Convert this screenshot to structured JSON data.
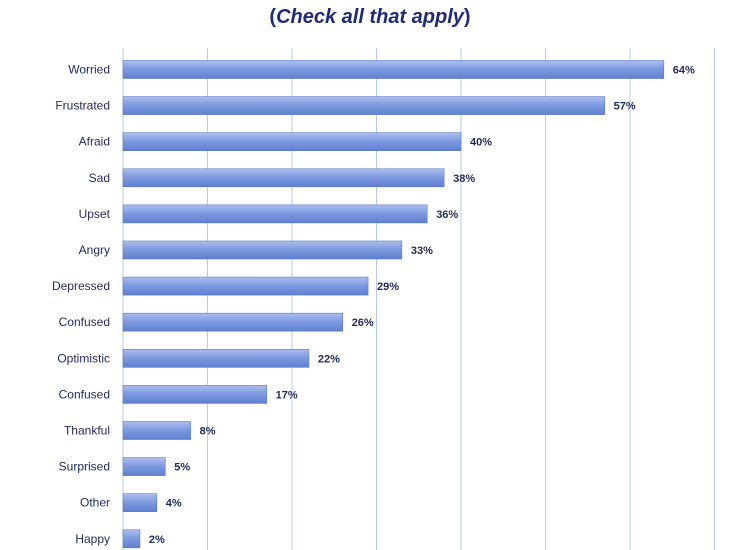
{
  "subtitle": {
    "open": "(",
    "text": "Check all that apply",
    "close": ")"
  },
  "chart_data": {
    "type": "bar",
    "orientation": "horizontal",
    "categories": [
      "Worried",
      "Frustrated",
      "Afraid",
      "Sad",
      "Upset",
      "Angry",
      "Depressed",
      "Confused",
      "Optimistic",
      "Confused",
      "Thankful",
      "Surprised",
      "Other",
      "Happy"
    ],
    "values": [
      64,
      57,
      40,
      38,
      36,
      33,
      29,
      26,
      22,
      17,
      8,
      5,
      4,
      2
    ],
    "value_labels": [
      "64%",
      "57%",
      "40%",
      "38%",
      "36%",
      "33%",
      "29%",
      "26%",
      "22%",
      "17%",
      "8%",
      "5%",
      "4%",
      "2%"
    ],
    "unit": "%",
    "xlim": [
      0,
      70
    ],
    "grid": true,
    "bar_color": "#7a97df"
  }
}
